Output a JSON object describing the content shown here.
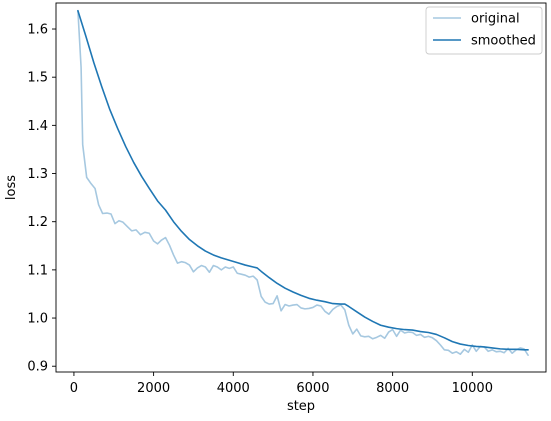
{
  "chart_data": {
    "type": "line",
    "title": "",
    "xlabel": "step",
    "ylabel": "loss",
    "xlim": [
      -450,
      11850
    ],
    "ylim": [
      0.888,
      1.654
    ],
    "xticks": [
      0,
      2000,
      4000,
      6000,
      8000,
      10000
    ],
    "yticks": [
      0.9,
      1.0,
      1.1,
      1.2,
      1.3,
      1.4,
      1.5,
      1.6
    ],
    "grid": false,
    "legend": {
      "position": "top-right",
      "entries": [
        "original",
        "smoothed"
      ]
    },
    "series": [
      {
        "name": "original",
        "color": "#a6c8e0",
        "style": "line",
        "points": [
          [
            100,
            1.638
          ],
          [
            180,
            1.52
          ],
          [
            220,
            1.36
          ],
          [
            320,
            1.292
          ],
          [
            430,
            1.279
          ],
          [
            530,
            1.269
          ],
          [
            620,
            1.235
          ],
          [
            720,
            1.217
          ],
          [
            830,
            1.218
          ],
          [
            930,
            1.216
          ],
          [
            1030,
            1.196
          ],
          [
            1130,
            1.202
          ],
          [
            1230,
            1.199
          ],
          [
            1340,
            1.19
          ],
          [
            1450,
            1.181
          ],
          [
            1560,
            1.183
          ],
          [
            1670,
            1.173
          ],
          [
            1780,
            1.178
          ],
          [
            1890,
            1.176
          ],
          [
            2000,
            1.16
          ],
          [
            2100,
            1.154
          ],
          [
            2200,
            1.162
          ],
          [
            2300,
            1.167
          ],
          [
            2400,
            1.151
          ],
          [
            2500,
            1.131
          ],
          [
            2600,
            1.114
          ],
          [
            2700,
            1.117
          ],
          [
            2800,
            1.115
          ],
          [
            2900,
            1.11
          ],
          [
            3000,
            1.096
          ],
          [
            3100,
            1.104
          ],
          [
            3200,
            1.109
          ],
          [
            3300,
            1.106
          ],
          [
            3400,
            1.095
          ],
          [
            3500,
            1.109
          ],
          [
            3600,
            1.106
          ],
          [
            3700,
            1.1
          ],
          [
            3800,
            1.106
          ],
          [
            3900,
            1.103
          ],
          [
            4000,
            1.106
          ],
          [
            4100,
            1.093
          ],
          [
            4200,
            1.091
          ],
          [
            4300,
            1.089
          ],
          [
            4400,
            1.085
          ],
          [
            4500,
            1.087
          ],
          [
            4600,
            1.079
          ],
          [
            4700,
            1.045
          ],
          [
            4800,
            1.033
          ],
          [
            4900,
            1.029
          ],
          [
            5000,
            1.03
          ],
          [
            5100,
            1.046
          ],
          [
            5200,
            1.015
          ],
          [
            5300,
            1.028
          ],
          [
            5400,
            1.025
          ],
          [
            5500,
            1.027
          ],
          [
            5600,
            1.028
          ],
          [
            5700,
            1.021
          ],
          [
            5800,
            1.019
          ],
          [
            5900,
            1.02
          ],
          [
            6000,
            1.022
          ],
          [
            6100,
            1.027
          ],
          [
            6200,
            1.025
          ],
          [
            6300,
            1.014
          ],
          [
            6400,
            1.008
          ],
          [
            6500,
            1.018
          ],
          [
            6600,
            1.024
          ],
          [
            6700,
            1.027
          ],
          [
            6800,
            1.017
          ],
          [
            6900,
            0.985
          ],
          [
            7000,
            0.967
          ],
          [
            7100,
            0.977
          ],
          [
            7200,
            0.963
          ],
          [
            7300,
            0.961
          ],
          [
            7400,
            0.962
          ],
          [
            7500,
            0.957
          ],
          [
            7600,
            0.96
          ],
          [
            7700,
            0.964
          ],
          [
            7800,
            0.958
          ],
          [
            7900,
            0.971
          ],
          [
            8000,
            0.976
          ],
          [
            8100,
            0.962
          ],
          [
            8200,
            0.975
          ],
          [
            8300,
            0.969
          ],
          [
            8400,
            0.971
          ],
          [
            8500,
            0.97
          ],
          [
            8600,
            0.964
          ],
          [
            8700,
            0.966
          ],
          [
            8800,
            0.96
          ],
          [
            8900,
            0.962
          ],
          [
            9000,
            0.959
          ],
          [
            9100,
            0.953
          ],
          [
            9200,
            0.944
          ],
          [
            9300,
            0.934
          ],
          [
            9400,
            0.933
          ],
          [
            9500,
            0.927
          ],
          [
            9600,
            0.93
          ],
          [
            9700,
            0.925
          ],
          [
            9800,
            0.935
          ],
          [
            9900,
            0.929
          ],
          [
            10000,
            0.944
          ],
          [
            10100,
            0.931
          ],
          [
            10200,
            0.941
          ],
          [
            10300,
            0.94
          ],
          [
            10400,
            0.931
          ],
          [
            10500,
            0.934
          ],
          [
            10600,
            0.93
          ],
          [
            10700,
            0.931
          ],
          [
            10800,
            0.928
          ],
          [
            10900,
            0.937
          ],
          [
            11000,
            0.927
          ],
          [
            11100,
            0.934
          ],
          [
            11200,
            0.938
          ],
          [
            11300,
            0.936
          ],
          [
            11400,
            0.923
          ]
        ]
      },
      {
        "name": "smoothed",
        "color": "#1f77b4",
        "style": "line",
        "points": [
          [
            100,
            1.638
          ],
          [
            300,
            1.585
          ],
          [
            500,
            1.53
          ],
          [
            700,
            1.48
          ],
          [
            900,
            1.433
          ],
          [
            1100,
            1.393
          ],
          [
            1300,
            1.356
          ],
          [
            1500,
            1.323
          ],
          [
            1700,
            1.294
          ],
          [
            1900,
            1.268
          ],
          [
            2100,
            1.243
          ],
          [
            2300,
            1.224
          ],
          [
            2500,
            1.2
          ],
          [
            2700,
            1.18
          ],
          [
            2900,
            1.163
          ],
          [
            3100,
            1.15
          ],
          [
            3300,
            1.139
          ],
          [
            3500,
            1.131
          ],
          [
            3700,
            1.125
          ],
          [
            3900,
            1.12
          ],
          [
            4100,
            1.115
          ],
          [
            4300,
            1.11
          ],
          [
            4500,
            1.106
          ],
          [
            4600,
            1.104
          ],
          [
            4700,
            1.097
          ],
          [
            4900,
            1.084
          ],
          [
            5100,
            1.072
          ],
          [
            5300,
            1.062
          ],
          [
            5500,
            1.054
          ],
          [
            5700,
            1.047
          ],
          [
            5900,
            1.041
          ],
          [
            6100,
            1.037
          ],
          [
            6300,
            1.034
          ],
          [
            6500,
            1.03
          ],
          [
            6700,
            1.029
          ],
          [
            6800,
            1.029
          ],
          [
            6900,
            1.024
          ],
          [
            7100,
            1.013
          ],
          [
            7300,
            1.002
          ],
          [
            7500,
            0.993
          ],
          [
            7700,
            0.985
          ],
          [
            7900,
            0.981
          ],
          [
            8100,
            0.978
          ],
          [
            8300,
            0.976
          ],
          [
            8500,
            0.975
          ],
          [
            8700,
            0.972
          ],
          [
            8900,
            0.97
          ],
          [
            9100,
            0.966
          ],
          [
            9300,
            0.959
          ],
          [
            9500,
            0.951
          ],
          [
            9700,
            0.946
          ],
          [
            9900,
            0.943
          ],
          [
            10100,
            0.941
          ],
          [
            10300,
            0.94
          ],
          [
            10500,
            0.938
          ],
          [
            10700,
            0.936
          ],
          [
            10900,
            0.935
          ],
          [
            11100,
            0.935
          ],
          [
            11300,
            0.934
          ],
          [
            11400,
            0.934
          ]
        ]
      }
    ]
  }
}
